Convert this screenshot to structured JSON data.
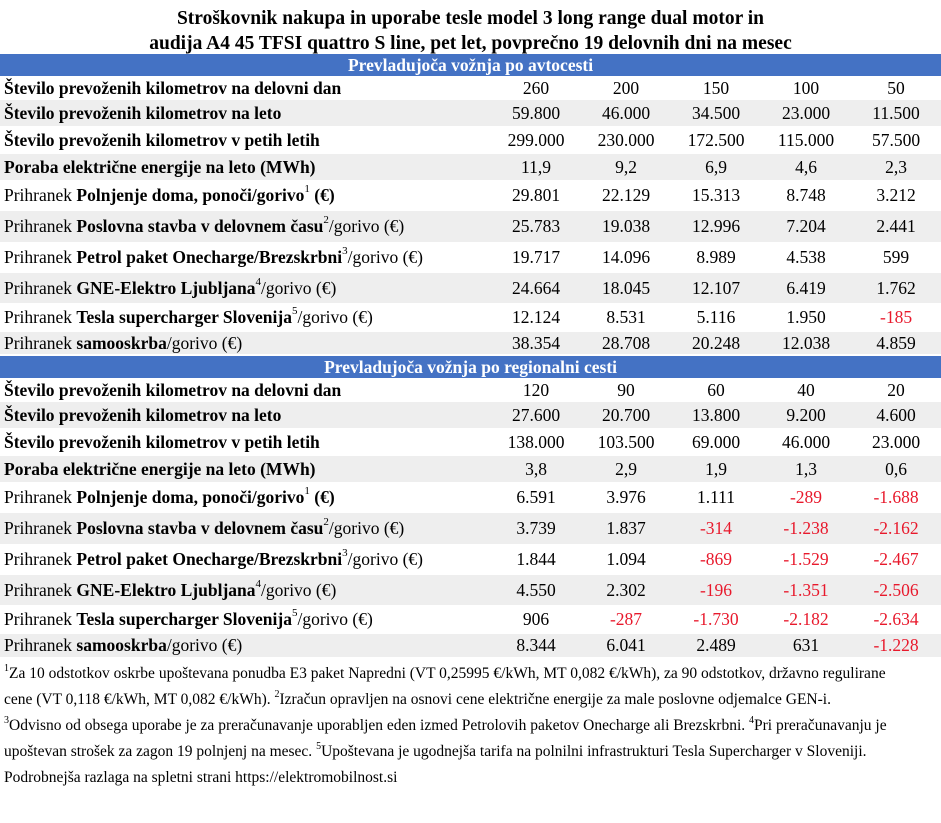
{
  "title": {
    "line1": "Stroškovnik nakupa in uporabe tesle model 3 long range dual motor in",
    "line2": "audija A4 45 TFSI quattro S line, pet let, povprečno 19 delovnih dni na mesec"
  },
  "sections": [
    {
      "heading": "Prevladujoča vožnja po avtocesti",
      "rows": [
        {
          "prefix": "",
          "bold": "Število prevoženih kilometrov na delovni dan",
          "sup": "",
          "suffix": "",
          "values": [
            "260",
            "200",
            "150",
            "100",
            "50"
          ]
        },
        {
          "prefix": "",
          "bold": "Število prevoženih kilometrov na leto",
          "sup": "",
          "suffix": "",
          "values": [
            "59.800",
            "46.000",
            "34.500",
            "23.000",
            "11.500"
          ]
        },
        {
          "prefix": "",
          "bold": "Število prevoženih kilometrov v petih letih",
          "sup": "",
          "suffix": "",
          "values": [
            "299.000",
            "230.000",
            "172.500",
            "115.000",
            "57.500"
          ]
        },
        {
          "prefix": "",
          "bold": "Poraba električne energije na leto (MWh)",
          "sup": "",
          "suffix": "",
          "values": [
            "11,9",
            "9,2",
            "6,9",
            "4,6",
            "2,3"
          ]
        },
        {
          "prefix": "Prihranek ",
          "bold": "Polnjenje doma, ponoči/gorivo",
          "sup": "1",
          "suffix": " (€)",
          "suffixBold": true,
          "values": [
            "29.801",
            "22.129",
            "15.313",
            "8.748",
            "3.212"
          ]
        },
        {
          "prefix": "Prihranek ",
          "bold": "Poslovna stavba v delovnem času",
          "sup": "2",
          "suffix": "/gorivo (€)",
          "values": [
            "25.783",
            "19.038",
            "12.996",
            "7.204",
            "2.441"
          ]
        },
        {
          "prefix": "Prihranek ",
          "bold": "Petrol paket Onecharge/Brezskrbni",
          "sup": "3",
          "suffix": "/gorivo (€)",
          "values": [
            "19.717",
            "14.096",
            "8.989",
            "4.538",
            "599"
          ]
        },
        {
          "prefix": "Prihranek ",
          "bold": "GNE-Elektro Ljubljana",
          "sup": "4",
          "suffix": "/gorivo (€)",
          "values": [
            "24.664",
            "18.045",
            "12.107",
            "6.419",
            "1.762"
          ]
        },
        {
          "prefix": "Prihranek ",
          "bold": "Tesla supercharger Slovenija",
          "sup": "5",
          "suffix": "/gorivo (€)",
          "values": [
            "12.124",
            "8.531",
            "5.116",
            "1.950",
            "-185"
          ]
        },
        {
          "prefix": "Prihranek ",
          "bold": "samooskrba",
          "sup": "",
          "suffix": "/gorivo (€)",
          "values": [
            "38.354",
            "28.708",
            "20.248",
            "12.038",
            "4.859"
          ]
        }
      ]
    },
    {
      "heading": "Prevladujoča vožnja po regionalni cesti",
      "rows": [
        {
          "prefix": "",
          "bold": "Število prevoženih kilometrov na delovni dan",
          "sup": "",
          "suffix": "",
          "values": [
            "120",
            "90",
            "60",
            "40",
            "20"
          ]
        },
        {
          "prefix": "",
          "bold": "Število prevoženih kilometrov na leto",
          "sup": "",
          "suffix": "",
          "values": [
            "27.600",
            "20.700",
            "13.800",
            "9.200",
            "4.600"
          ]
        },
        {
          "prefix": "",
          "bold": "Število prevoženih kilometrov v petih letih",
          "sup": "",
          "suffix": "",
          "values": [
            "138.000",
            "103.500",
            "69.000",
            "46.000",
            "23.000"
          ]
        },
        {
          "prefix": "",
          "bold": "Poraba električne energije na leto (MWh)",
          "sup": "",
          "suffix": "",
          "values": [
            "3,8",
            "2,9",
            "1,9",
            "1,3",
            "0,6"
          ]
        },
        {
          "prefix": "Prihranek ",
          "bold": "Polnjenje doma, ponoči/gorivo",
          "sup": "1",
          "suffix": " (€)",
          "suffixBold": true,
          "values": [
            "6.591",
            "3.976",
            "1.111",
            "-289",
            "-1.688"
          ]
        },
        {
          "prefix": "Prihranek ",
          "bold": "Poslovna stavba v delovnem času",
          "sup": "2",
          "suffix": "/gorivo (€)",
          "values": [
            "3.739",
            "1.837",
            "-314",
            "-1.238",
            "-2.162"
          ]
        },
        {
          "prefix": "Prihranek ",
          "bold": "Petrol paket Onecharge/Brezskrbni",
          "sup": "3",
          "suffix": "/gorivo (€)",
          "values": [
            "1.844",
            "1.094",
            "-869",
            "-1.529",
            "-2.467"
          ]
        },
        {
          "prefix": "Prihranek ",
          "bold": "GNE-Elektro Ljubljana",
          "sup": "4",
          "suffix": "/gorivo (€)",
          "values": [
            "4.550",
            "2.302",
            "-196",
            "-1.351",
            "-2.506"
          ]
        },
        {
          "prefix": "Prihranek ",
          "bold": "Tesla supercharger Slovenija",
          "sup": "5",
          "suffix": "/gorivo (€)",
          "values": [
            "906",
            "-287",
            "-1.730",
            "-2.182",
            "-2.634"
          ]
        },
        {
          "prefix": "Prihranek ",
          "bold": "samooskrba",
          "sup": "",
          "suffix": "/gorivo (€)",
          "values": [
            "8.344",
            "6.041",
            "2.489",
            "631",
            "-1.228"
          ]
        }
      ]
    }
  ],
  "footnotes": [
    [
      {
        "sup": "1"
      },
      {
        "text": "Za 10 odstotkov oskrbe upoštevana ponudba E3 paket Napredni (VT 0,25995 €/kWh, MT 0,082 €/kWh), za 90 odstotkov, državno regulirane"
      }
    ],
    [
      {
        "text": "cene (VT 0,118 €/kWh, MT 0,082 €/kWh). "
      },
      {
        "sup": "2"
      },
      {
        "text": "Izračun opravljen na osnovi cene električne energije za male poslovne odjemalce GEN-i."
      }
    ],
    [
      {
        "sup": "3"
      },
      {
        "text": "Odvisno od obsega uporabe je za preračunavanje uporabljen eden izmed Petrolovih paketov Onecharge ali Brezskrbni. "
      },
      {
        "sup": "4"
      },
      {
        "text": "Pri preračunavanju je"
      }
    ],
    [
      {
        "text": "upoštevan strošek za zagon 19 polnjenj na mesec. "
      },
      {
        "sup": "5"
      },
      {
        "text": "Upoštevana je ugodnejša tarifa na polnilni infrastrukturi Tesla Supercharger v Sloveniji."
      }
    ],
    [
      {
        "text": "Podrobnejša razlaga na spletni strani https://elektromobilnost.si"
      }
    ]
  ],
  "colors": {
    "section_bg": "#4472c4",
    "alt_row_bg": "#eeeeee",
    "negative": "#e8192c"
  }
}
